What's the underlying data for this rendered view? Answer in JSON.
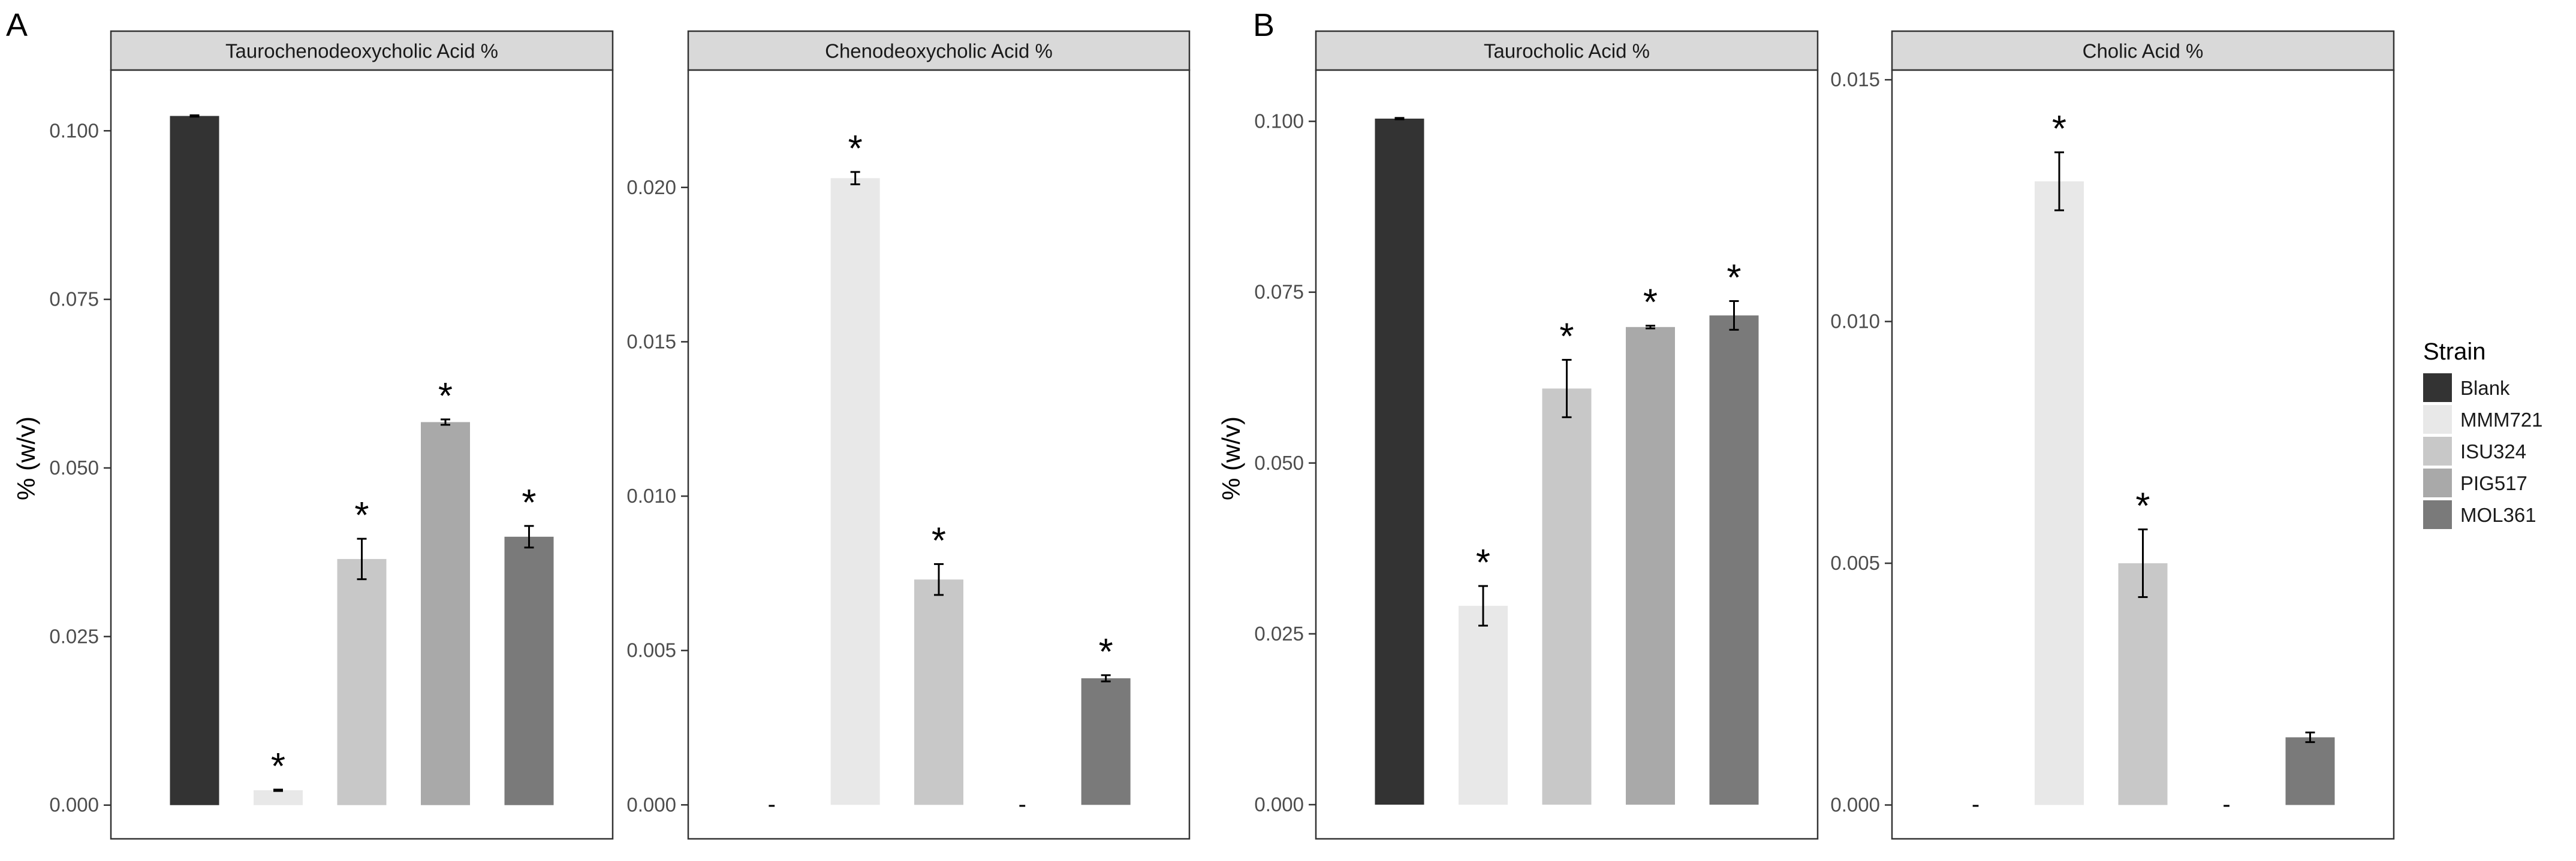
{
  "legend": {
    "title": "Strain",
    "items": [
      {
        "label": "Blank",
        "color": "#333333"
      },
      {
        "label": "MMM721",
        "color": "#E8E8E8"
      },
      {
        "label": "ISU324",
        "color": "#C8C8C8"
      },
      {
        "label": "PIG517",
        "color": "#A9A9A9"
      },
      {
        "label": "MOL361",
        "color": "#7A7A7A"
      }
    ]
  },
  "panels": [
    {
      "letter": "A",
      "ylabel": "% (w/v)"
    },
    {
      "letter": "B",
      "ylabel": "% (w/v)"
    }
  ],
  "chart_data": [
    {
      "type": "bar",
      "panel": "A",
      "title": "Taurochenodeoxycholic Acid %",
      "ylabel": "% (w/v)",
      "categories": [
        "Blank",
        "MMM721",
        "ISU324",
        "PIG517",
        "MOL361"
      ],
      "values": [
        0.1022,
        0.0022,
        0.0365,
        0.0568,
        0.0398
      ],
      "errors": [
        0.0001,
        0.0001,
        0.003,
        0.0004,
        0.0016
      ],
      "significant": [
        false,
        true,
        true,
        true,
        true
      ],
      "not_detected": [
        false,
        false,
        false,
        false,
        false
      ],
      "ylim": [
        -0.005,
        0.109
      ],
      "ticks": [
        0,
        0.025,
        0.05,
        0.075,
        0.1
      ],
      "tick_labels": [
        "0.000",
        "0.025",
        "0.050",
        "0.075",
        "0.100"
      ],
      "sig_marker": "*",
      "nd_marker": "-"
    },
    {
      "type": "bar",
      "panel": "A",
      "title": "Chenodeoxycholic Acid %",
      "ylabel": "",
      "categories": [
        "Blank",
        "MMM721",
        "ISU324",
        "PIG517",
        "MOL361"
      ],
      "values": [
        0,
        0.0203,
        0.0073,
        0,
        0.0041
      ],
      "errors": [
        0,
        0.0002,
        0.0005,
        0,
        0.0001
      ],
      "significant": [
        false,
        true,
        true,
        false,
        true
      ],
      "not_detected": [
        true,
        false,
        false,
        true,
        false
      ],
      "ylim": [
        -0.0011,
        0.0238
      ],
      "ticks": [
        0,
        0.005,
        0.01,
        0.015,
        0.02
      ],
      "tick_labels": [
        "0.000",
        "0.005",
        "0.010",
        "0.015",
        "0.020"
      ],
      "sig_marker": "*",
      "nd_marker": "-"
    },
    {
      "type": "bar",
      "panel": "B",
      "title": "Taurocholic Acid %",
      "ylabel": "% (w/v)",
      "categories": [
        "Blank",
        "MMM721",
        "ISU324",
        "PIG517",
        "MOL361"
      ],
      "values": [
        0.1004,
        0.0291,
        0.0609,
        0.0699,
        0.0716
      ],
      "errors": [
        0.0001,
        0.0029,
        0.0042,
        0.0002,
        0.0021
      ],
      "significant": [
        false,
        true,
        true,
        true,
        true
      ],
      "not_detected": [
        false,
        false,
        false,
        false,
        false
      ],
      "ylim": [
        -0.005,
        0.1075
      ],
      "ticks": [
        0,
        0.025,
        0.05,
        0.075,
        0.1
      ],
      "tick_labels": [
        "0.000",
        "0.025",
        "0.050",
        "0.075",
        "0.100"
      ],
      "sig_marker": "*",
      "nd_marker": "-"
    },
    {
      "type": "bar",
      "panel": "B",
      "title": "Cholic Acid %",
      "ylabel": "",
      "categories": [
        "Blank",
        "MMM721",
        "ISU324",
        "PIG517",
        "MOL361"
      ],
      "values": [
        0,
        0.0129,
        0.005,
        0,
        0.0014
      ],
      "errors": [
        0,
        0.0006,
        0.0007,
        0,
        0.0001
      ],
      "significant": [
        false,
        true,
        true,
        false,
        false
      ],
      "not_detected": [
        true,
        false,
        false,
        true,
        false
      ],
      "ylim": [
        -0.0007,
        0.0152
      ],
      "ticks": [
        0,
        0.005,
        0.01,
        0.015
      ],
      "tick_labels": [
        "0.000",
        "0.005",
        "0.010",
        "0.015"
      ],
      "sig_marker": "*",
      "nd_marker": "-"
    }
  ]
}
